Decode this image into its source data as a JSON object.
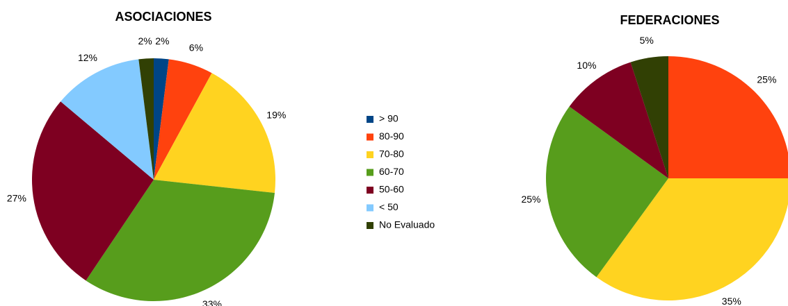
{
  "legend": {
    "categories": [
      "> 90",
      "80-90",
      "70-80",
      "60-70",
      "50-60",
      "< 50",
      "No Evaluado"
    ],
    "colors": [
      "#004586",
      "#ff420e",
      "#ffd320",
      "#579d1c",
      "#7e0021",
      "#83caff",
      "#314004"
    ]
  },
  "chart_data": [
    {
      "type": "pie",
      "title": "ASOCIACIONES",
      "values": [
        2,
        6,
        19,
        33,
        27,
        12,
        2
      ],
      "value_labels": [
        "2%",
        "6%",
        "19%",
        "33%",
        "27%",
        "12%",
        "2%"
      ]
    },
    {
      "type": "pie",
      "title": "FEDERACIONES",
      "values": [
        null,
        25,
        35,
        25,
        10,
        null,
        5
      ],
      "value_labels": [
        null,
        "25%",
        "35%",
        "25%",
        "10%",
        null,
        "5%"
      ]
    }
  ]
}
